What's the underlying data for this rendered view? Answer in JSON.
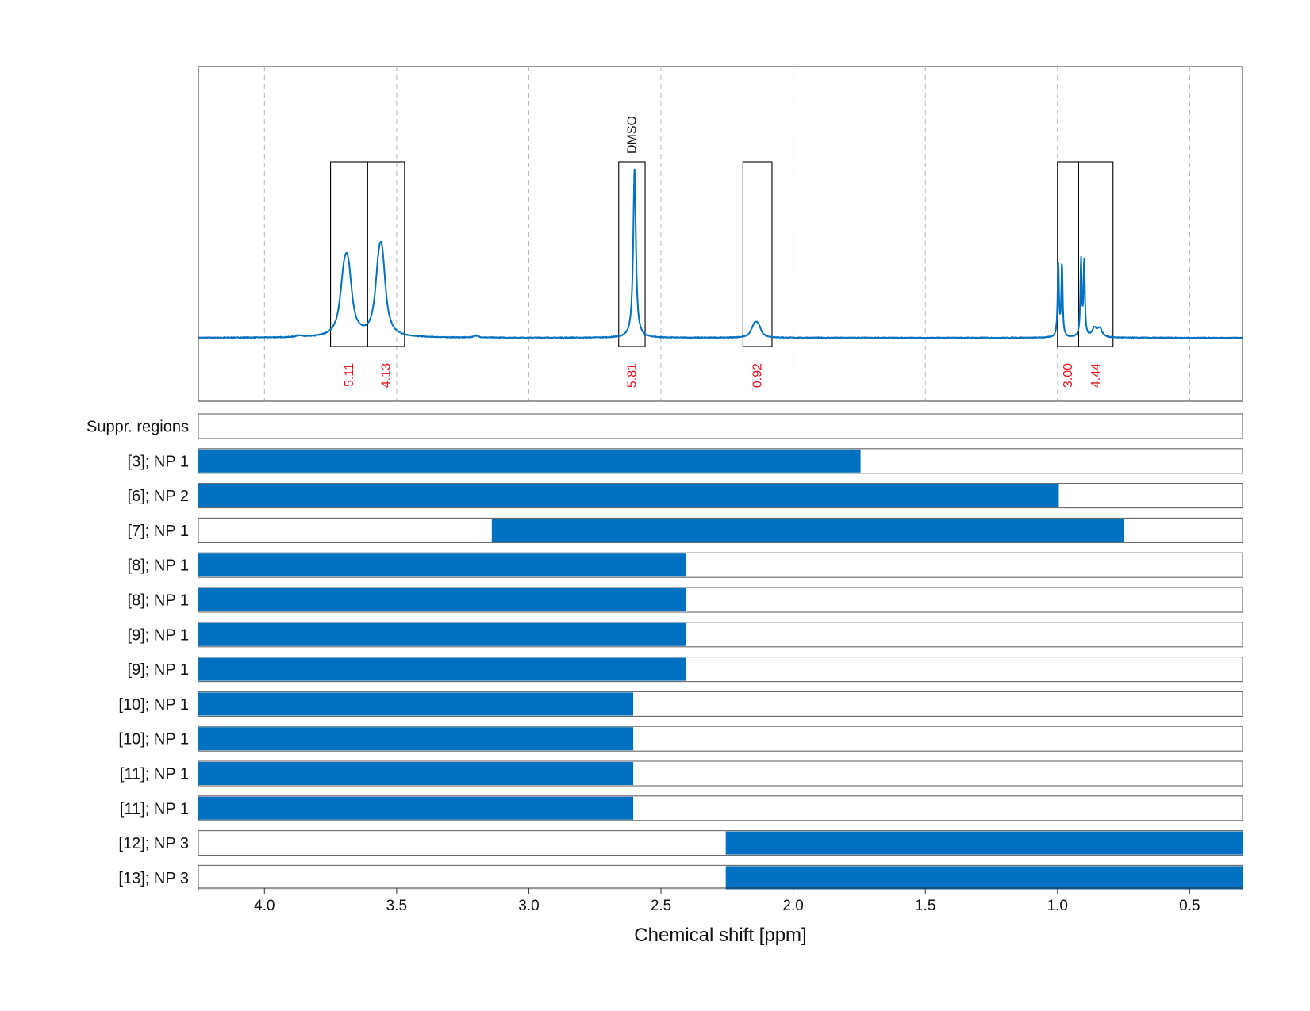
{
  "chart_data": {
    "type": "line",
    "xlabel": "Chemical shift [ppm]",
    "xlim": [
      4.25,
      0.3
    ],
    "x_ticks": [
      4.0,
      3.5,
      3.0,
      2.5,
      2.0,
      1.5,
      1.0,
      0.5
    ],
    "x_tick_labels": [
      "4.0",
      "3.5",
      "3.0",
      "2.5",
      "2.0",
      "1.5",
      "1.0",
      "0.5"
    ],
    "grid": true,
    "colors": {
      "spectrum": "#0070c0",
      "bar": "#0070c0",
      "integral": "#e8111a",
      "box": "#000000"
    },
    "spectrum": {
      "baseline": 0,
      "peaks": [
        {
          "center": 3.69,
          "height": 0.24,
          "width": 0.016,
          "multiplet": [
            -0.01,
            0.0,
            0.012
          ]
        },
        {
          "center": 3.56,
          "height": 0.26,
          "width": 0.015,
          "multiplet": [
            -0.008,
            0.0,
            0.01
          ]
        },
        {
          "center": 2.6,
          "height": 1.0,
          "width": 0.006,
          "multiplet": [
            0.0
          ]
        },
        {
          "center": 2.14,
          "height": 0.05,
          "width": 0.012,
          "multiplet": [
            -0.01,
            0.0,
            0.01
          ]
        },
        {
          "center": 0.99,
          "height": 0.5,
          "width": 0.003,
          "multiplet": [
            -0.007,
            0.007
          ]
        },
        {
          "center": 0.905,
          "height": 0.52,
          "width": 0.003,
          "multiplet": [
            -0.006,
            0.006
          ]
        },
        {
          "center": 0.85,
          "height": 0.06,
          "width": 0.01,
          "multiplet": [
            -0.01,
            0.01
          ]
        },
        {
          "center": 3.87,
          "height": 0.01,
          "width": 0.01,
          "multiplet": [
            0.0
          ]
        },
        {
          "center": 3.2,
          "height": 0.012,
          "width": 0.01,
          "multiplet": [
            0.0
          ]
        }
      ]
    },
    "integration_regions": [
      {
        "from": 3.75,
        "to": 3.61,
        "value": "5.11"
      },
      {
        "from": 3.61,
        "to": 3.47,
        "value": "4.13"
      },
      {
        "from": 2.66,
        "to": 2.56,
        "value": "5.81",
        "annotation": "DMSO"
      },
      {
        "from": 2.19,
        "to": 2.08,
        "value": "0.92"
      },
      {
        "from": 1.0,
        "to": 0.92,
        "value": "3.00"
      },
      {
        "from": 0.92,
        "to": 0.79,
        "value": "4.44"
      }
    ],
    "suppression_rows": [
      {
        "label": "Suppr. regions",
        "from": null,
        "to": null
      },
      {
        "label": "[3]; NP 1",
        "from": 4.25,
        "to": 1.745
      },
      {
        "label": "[6]; NP 2",
        "from": 4.25,
        "to": 0.995
      },
      {
        "label": "[7]; NP 1",
        "from": 3.14,
        "to": 0.75
      },
      {
        "label": "[8]; NP 1",
        "from": 4.25,
        "to": 2.405
      },
      {
        "label": "[8]; NP 1",
        "from": 4.25,
        "to": 2.405
      },
      {
        "label": "[9]; NP 1",
        "from": 4.25,
        "to": 2.405
      },
      {
        "label": "[9]; NP 1",
        "from": 4.25,
        "to": 2.405
      },
      {
        "label": "[10]; NP 1",
        "from": 4.25,
        "to": 2.605
      },
      {
        "label": "[10]; NP 1",
        "from": 4.25,
        "to": 2.605
      },
      {
        "label": "[11]; NP 1",
        "from": 4.25,
        "to": 2.605
      },
      {
        "label": "[11]; NP 1",
        "from": 4.25,
        "to": 2.605
      },
      {
        "label": "[12]; NP 3",
        "from": 2.255,
        "to": 0.3
      },
      {
        "label": "[13]; NP 3",
        "from": 2.255,
        "to": 0.3
      }
    ]
  }
}
